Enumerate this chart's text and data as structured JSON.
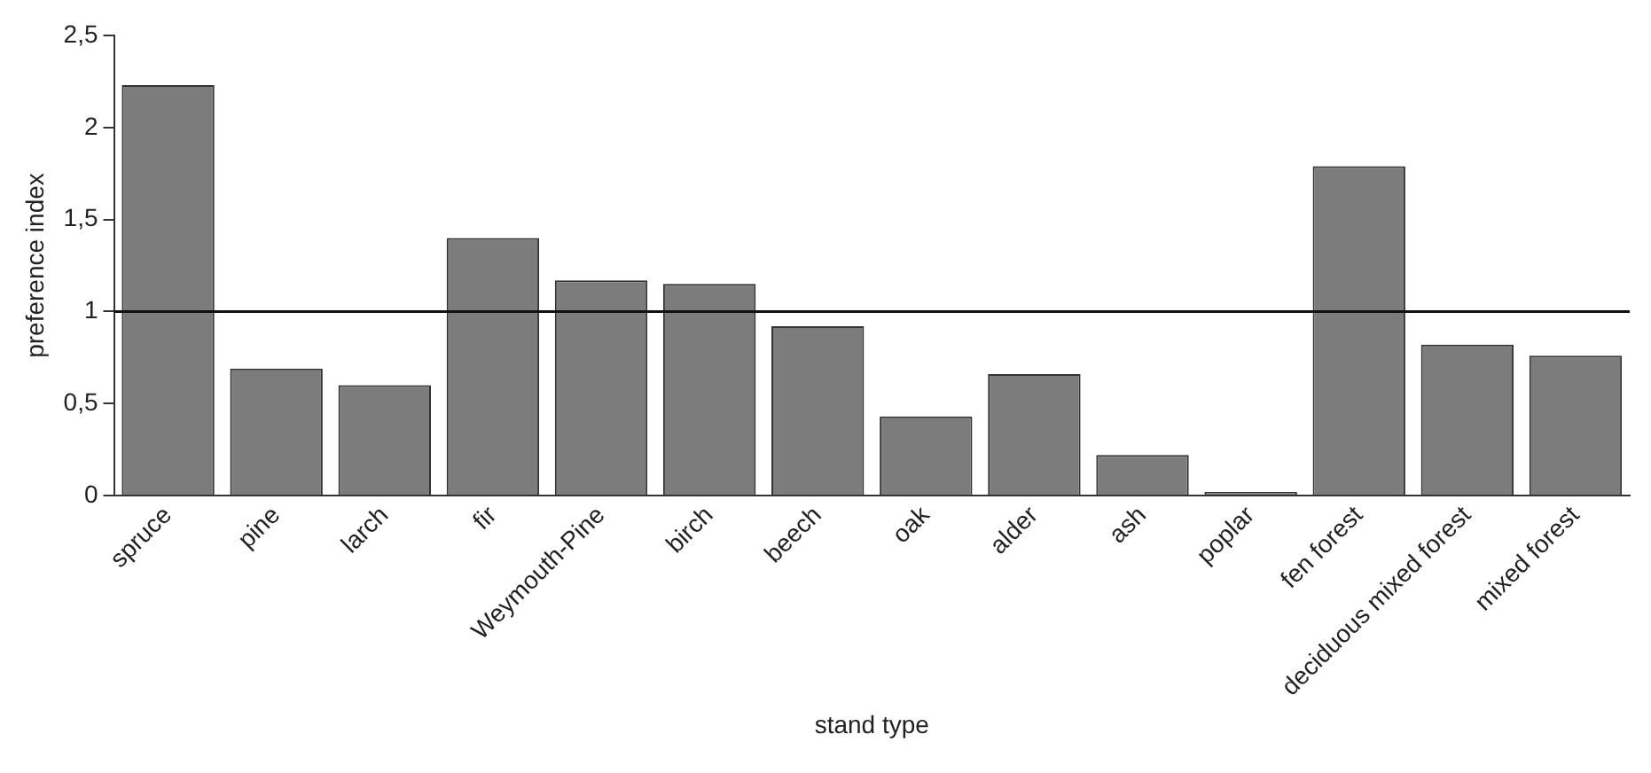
{
  "chart_data": {
    "type": "bar",
    "xlabel": "stand type",
    "ylabel": "preference index",
    "categories": [
      "spruce",
      "pine",
      "larch",
      "fir",
      "Weymouth-Pine",
      "birch",
      "beech",
      "oak",
      "alder",
      "ash",
      "poplar",
      "fen forest",
      "deciduous mixed forest",
      "mixed forest"
    ],
    "values": [
      2.23,
      0.69,
      0.6,
      1.4,
      1.17,
      1.15,
      0.92,
      0.43,
      0.66,
      0.22,
      0.02,
      1.79,
      0.82,
      0.76
    ],
    "color": "#7c7c7c",
    "ylim": [
      0,
      2.5
    ],
    "yticks": [
      0,
      {
        "value": 0.5,
        "label": "0,5"
      },
      1,
      {
        "value": 1.5,
        "label": "1,5"
      },
      2,
      {
        "value": 2.5,
        "label": "2,5"
      }
    ],
    "ref_lines": [
      {
        "axis": "y",
        "value": 1,
        "color": "#111111"
      }
    ],
    "grid": false,
    "legend": false
  }
}
